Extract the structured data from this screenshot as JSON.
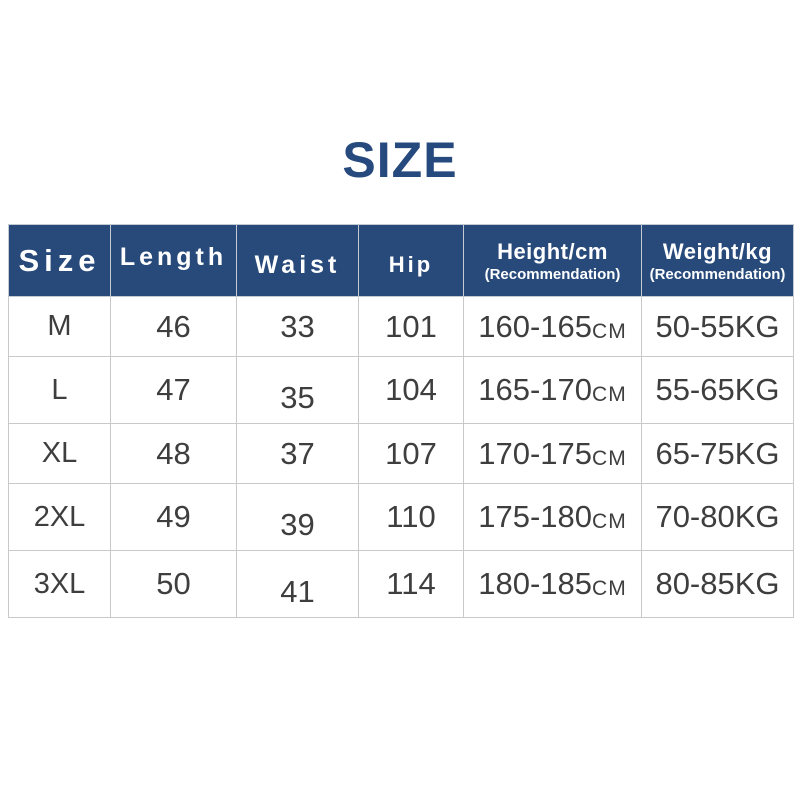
{
  "colors": {
    "title": "#26497e",
    "header_bg": "#274a7b",
    "header_text": "#ffffff",
    "body_text": "#3e3e3e",
    "border": "#c9c9c9",
    "background": "#ffffff"
  },
  "chart_data": {
    "type": "table",
    "title": "SIZE",
    "columns": [
      {
        "label": "Size",
        "sublabel": ""
      },
      {
        "label": "Length",
        "sublabel": ""
      },
      {
        "label": "Waist",
        "sublabel": ""
      },
      {
        "label": "Hip",
        "sublabel": ""
      },
      {
        "label": "Height/cm",
        "sublabel": "(Recommendation)"
      },
      {
        "label": "Weight/kg",
        "sublabel": "(Recommendation)"
      }
    ],
    "rows": [
      {
        "size": "M",
        "length": "46",
        "waist": "33",
        "hip": "101",
        "height_range": "160-165",
        "height_unit": "CM",
        "weight": "50-55KG"
      },
      {
        "size": "L",
        "length": "47",
        "waist": "35",
        "hip": "104",
        "height_range": "165-170",
        "height_unit": "CM",
        "weight": "55-65KG"
      },
      {
        "size": "XL",
        "length": "48",
        "waist": "37",
        "hip": "107",
        "height_range": "170-175",
        "height_unit": "CM",
        "weight": "65-75KG"
      },
      {
        "size": "2XL",
        "length": "49",
        "waist": "39",
        "hip": "110",
        "height_range": "175-180",
        "height_unit": "CM",
        "weight": "70-80KG"
      },
      {
        "size": "3XL",
        "length": "50",
        "waist": "41",
        "hip": "114",
        "height_range": "180-185",
        "height_unit": "CM",
        "weight": "80-85KG"
      }
    ]
  }
}
